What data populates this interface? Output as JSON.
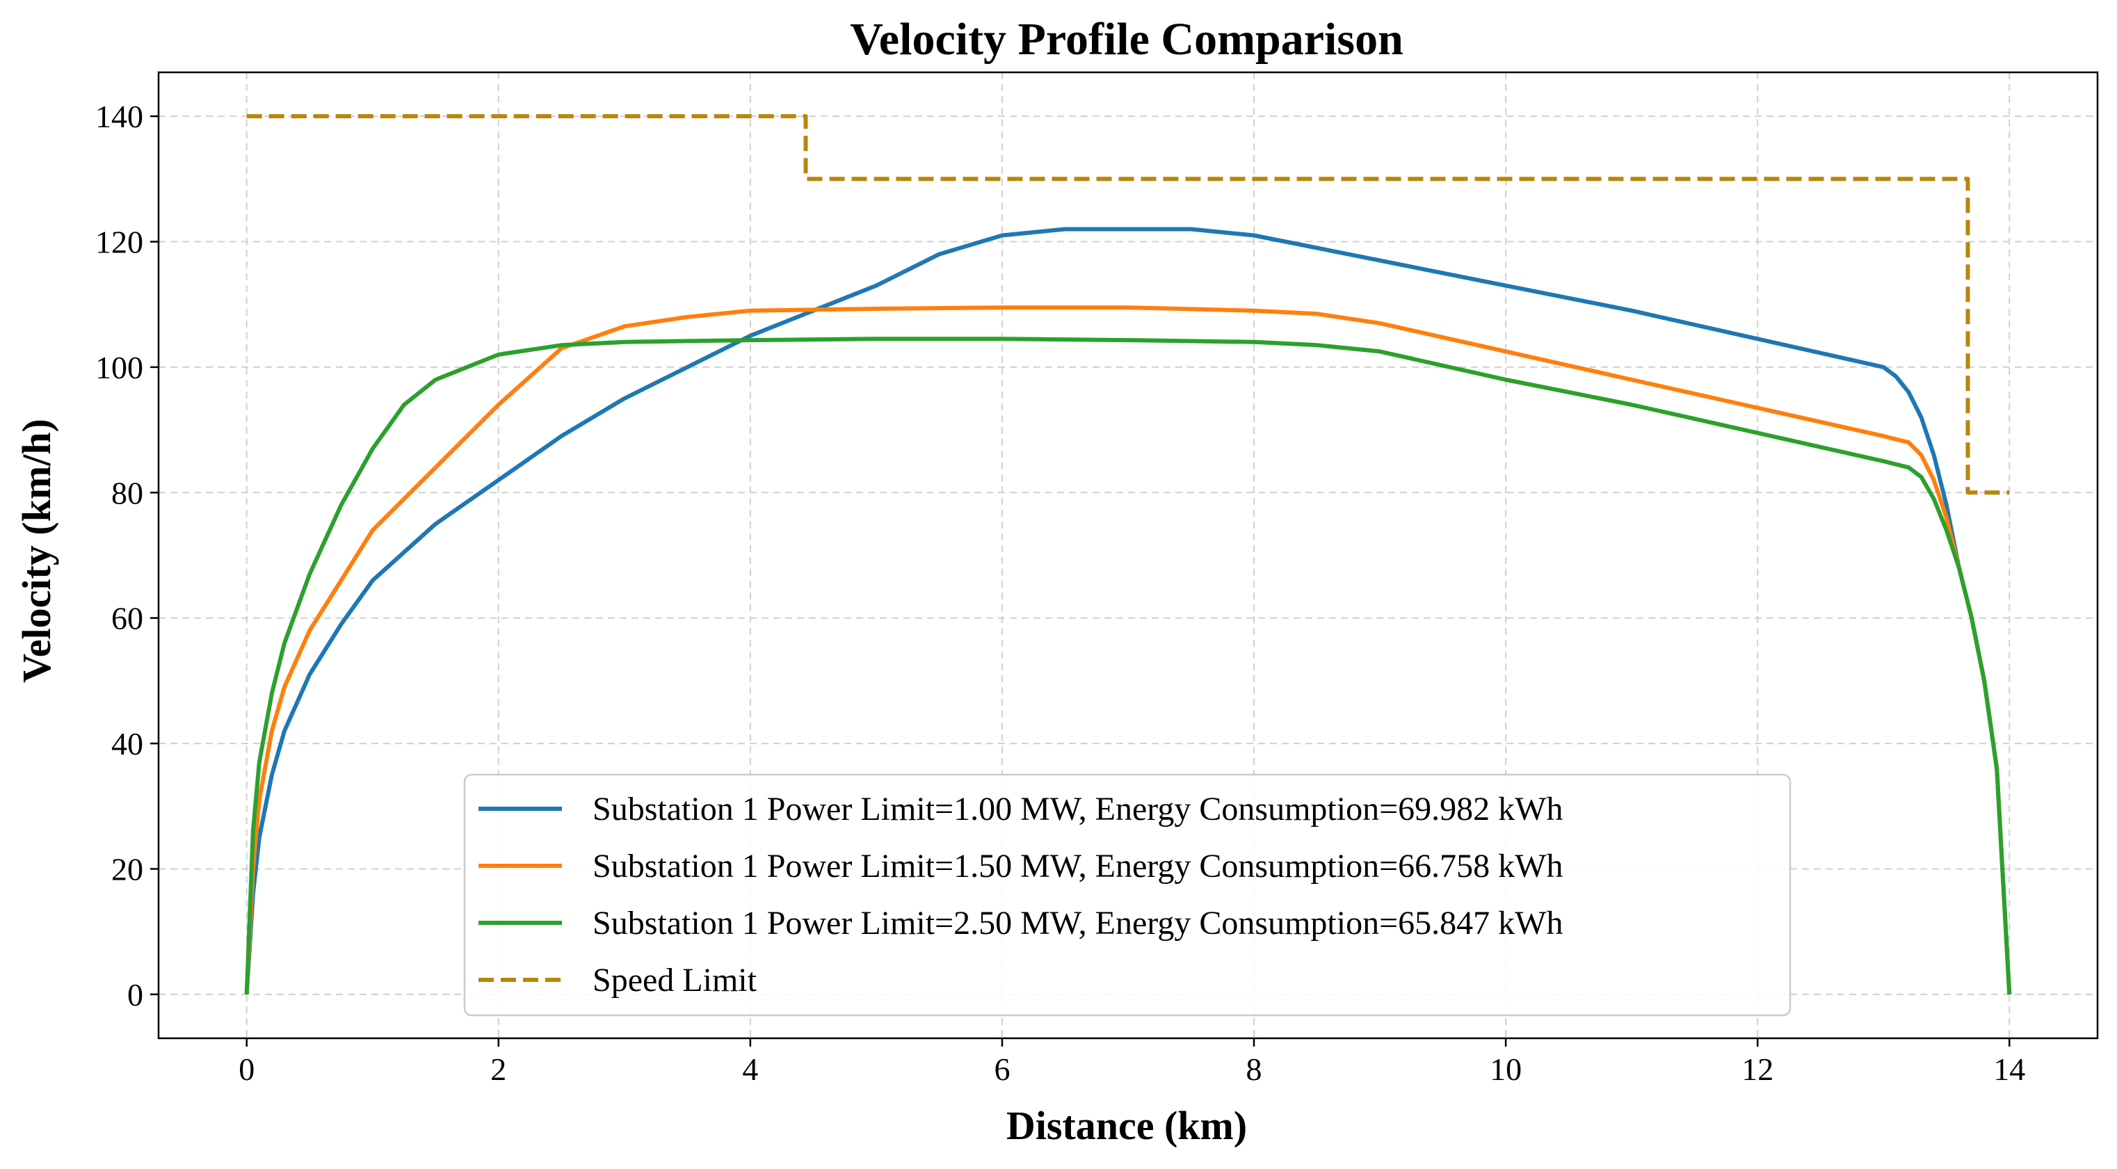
{
  "chart_data": {
    "type": "line",
    "title": "Velocity Profile Comparison",
    "xlabel": "Distance (km)",
    "ylabel": "Velocity (km/h)",
    "xlim": [
      -0.7,
      14.7
    ],
    "ylim": [
      -7,
      147
    ],
    "xticks": [
      0,
      2,
      4,
      6,
      8,
      10,
      12,
      14
    ],
    "yticks": [
      0,
      20,
      40,
      60,
      80,
      100,
      120,
      140
    ],
    "grid": true,
    "legend_position": "lower-center",
    "series": [
      {
        "name": "Substation 1 Power Limit=1.00 MW, Energy Consumption=69.982 kWh",
        "color": "#1f77b4",
        "style": "solid",
        "x": [
          0,
          0.05,
          0.1,
          0.2,
          0.3,
          0.5,
          0.75,
          1.0,
          1.5,
          2.0,
          2.5,
          3.0,
          3.5,
          4.0,
          4.5,
          5.0,
          5.5,
          6.0,
          6.5,
          7.0,
          7.5,
          8.0,
          8.5,
          9.0,
          10.0,
          11.0,
          12.0,
          13.0,
          13.1,
          13.2,
          13.3,
          13.4,
          13.5,
          13.6,
          13.7,
          13.8,
          13.9,
          14.0
        ],
        "y": [
          0,
          16,
          25,
          35,
          42,
          51,
          59,
          66,
          75,
          82,
          89,
          95,
          100,
          105,
          109,
          113,
          118,
          121,
          122,
          122,
          122,
          121,
          119,
          117,
          113,
          109,
          104.5,
          100,
          98.5,
          96,
          92,
          86,
          78,
          68,
          60,
          50,
          36,
          0
        ]
      },
      {
        "name": "Substation 1 Power Limit=1.50 MW, Energy Consumption=66.758 kWh",
        "color": "#ff7f0e",
        "style": "solid",
        "x": [
          0,
          0.05,
          0.1,
          0.2,
          0.3,
          0.5,
          0.75,
          1.0,
          1.5,
          2.0,
          2.5,
          3.0,
          3.5,
          4.0,
          5.0,
          6.0,
          7.0,
          8.0,
          8.5,
          9.0,
          10.0,
          11.0,
          12.0,
          13.0,
          13.2,
          13.3,
          13.4,
          13.5,
          13.6,
          13.7,
          13.8,
          13.9,
          14.0
        ],
        "y": [
          0,
          20,
          31,
          42,
          49,
          58,
          66,
          74,
          84,
          94,
          103,
          106.5,
          108,
          109,
          109.3,
          109.5,
          109.5,
          109,
          108.5,
          107,
          102.5,
          98,
          93.5,
          89,
          88,
          86,
          82,
          76,
          68,
          60,
          50,
          36,
          0
        ]
      },
      {
        "name": "Substation 1 Power Limit=2.50 MW, Energy Consumption=65.847 kWh",
        "color": "#2ca02c",
        "style": "solid",
        "x": [
          0,
          0.05,
          0.1,
          0.2,
          0.3,
          0.5,
          0.75,
          1.0,
          1.25,
          1.5,
          2.0,
          2.5,
          3.0,
          4.0,
          5.0,
          6.0,
          7.0,
          8.0,
          8.5,
          9.0,
          10.0,
          11.0,
          12.0,
          13.0,
          13.2,
          13.3,
          13.4,
          13.5,
          13.6,
          13.7,
          13.8,
          13.9,
          14.0
        ],
        "y": [
          0,
          26,
          37,
          48,
          56,
          67,
          78,
          87,
          94,
          98,
          102,
          103.5,
          104,
          104.3,
          104.5,
          104.5,
          104.3,
          104,
          103.5,
          102.5,
          98,
          94,
          89.5,
          85,
          84,
          82.5,
          79,
          74,
          68,
          60,
          50,
          36,
          0
        ]
      },
      {
        "name": "Speed Limit",
        "color": "#b8860b",
        "style": "dashed",
        "x": [
          0,
          4.44,
          4.44,
          13.67,
          13.67,
          14.0
        ],
        "y": [
          140,
          140,
          130,
          130,
          80,
          80
        ]
      }
    ]
  }
}
